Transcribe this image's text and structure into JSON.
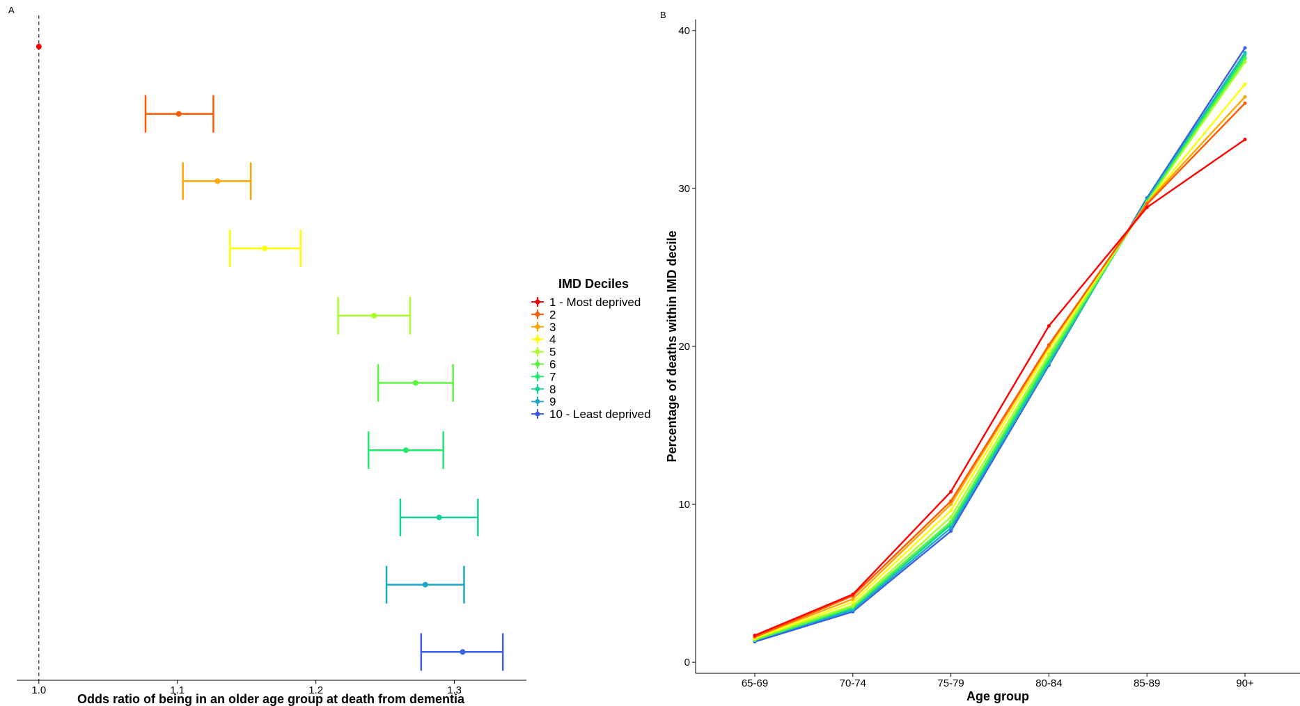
{
  "panels": {
    "a": {
      "label": "A"
    },
    "b": {
      "label": "B"
    }
  },
  "legend": {
    "title": "IMD Deciles",
    "items": [
      {
        "label": "1 - Most deprived",
        "color": "#ff0000"
      },
      {
        "label": "2",
        "color": "#ff5a00"
      },
      {
        "label": "3",
        "color": "#ffa500"
      },
      {
        "label": "4",
        "color": "#ffff00"
      },
      {
        "label": "5",
        "color": "#a8ff2a"
      },
      {
        "label": "6",
        "color": "#5cf542"
      },
      {
        "label": "7",
        "color": "#1eeb6e"
      },
      {
        "label": "8",
        "color": "#18d09a"
      },
      {
        "label": "9",
        "color": "#1ea7c8"
      },
      {
        "label": "10 - Least deprived",
        "color": "#3a5ee8"
      }
    ]
  },
  "chart_data": [
    {
      "type": "scatter",
      "panel": "A",
      "subtype": "forest",
      "xlabel": "Odds ratio of being in an older age group at death from dementia",
      "ylabel": "",
      "xlim": [
        0.984,
        1.352
      ],
      "x_ticks": [
        1.0,
        1.1,
        1.2,
        1.3
      ],
      "x_tick_labels": [
        "1.0",
        "1.1",
        "1.2",
        "1.3"
      ],
      "reference_line": 1.0,
      "grid": false,
      "series": [
        {
          "decile": "1 - Most deprived",
          "or": 1.0,
          "lower": null,
          "upper": null
        },
        {
          "decile": "2",
          "or": 1.101,
          "lower": 1.077,
          "upper": 1.126
        },
        {
          "decile": "3",
          "or": 1.129,
          "lower": 1.104,
          "upper": 1.153
        },
        {
          "decile": "4",
          "or": 1.163,
          "lower": 1.138,
          "upper": 1.189
        },
        {
          "decile": "5",
          "or": 1.242,
          "lower": 1.216,
          "upper": 1.268
        },
        {
          "decile": "6",
          "or": 1.272,
          "lower": 1.245,
          "upper": 1.299
        },
        {
          "decile": "7",
          "or": 1.265,
          "lower": 1.238,
          "upper": 1.292
        },
        {
          "decile": "8",
          "or": 1.289,
          "lower": 1.261,
          "upper": 1.317
        },
        {
          "decile": "9",
          "or": 1.279,
          "lower": 1.251,
          "upper": 1.307
        },
        {
          "decile": "10 - Least deprived",
          "or": 1.306,
          "lower": 1.276,
          "upper": 1.335
        }
      ]
    },
    {
      "type": "line",
      "panel": "B",
      "xlabel": "Age group",
      "ylabel": "Percentage of deaths within IMD decile",
      "categories": [
        "65-69",
        "70-74",
        "75-79",
        "80-84",
        "85-89",
        "90+"
      ],
      "ylim": [
        -0.7,
        40.7
      ],
      "y_ticks": [
        0,
        10,
        20,
        30,
        40
      ],
      "y_tick_labels": [
        "0",
        "10",
        "20",
        "30",
        "40"
      ],
      "grid": false,
      "series": [
        {
          "name": "1 - Most deprived",
          "values": [
            1.7,
            4.3,
            10.8,
            21.3,
            28.8,
            33.1
          ]
        },
        {
          "name": "2",
          "values": [
            1.6,
            4.2,
            10.2,
            20.1,
            29.0,
            35.4
          ]
        },
        {
          "name": "3",
          "values": [
            1.6,
            4.0,
            10.0,
            20.0,
            29.1,
            35.8
          ]
        },
        {
          "name": "4",
          "values": [
            1.5,
            3.8,
            9.6,
            19.8,
            29.1,
            36.6
          ]
        },
        {
          "name": "5",
          "values": [
            1.5,
            3.6,
            9.2,
            19.5,
            29.1,
            38.0
          ]
        },
        {
          "name": "6",
          "values": [
            1.4,
            3.5,
            8.9,
            19.3,
            29.1,
            38.2
          ]
        },
        {
          "name": "7",
          "values": [
            1.4,
            3.5,
            8.8,
            19.2,
            29.2,
            38.3
          ]
        },
        {
          "name": "8",
          "values": [
            1.4,
            3.4,
            8.7,
            19.0,
            29.2,
            38.5
          ]
        },
        {
          "name": "9",
          "values": [
            1.4,
            3.3,
            8.5,
            18.9,
            29.3,
            38.6
          ]
        },
        {
          "name": "10 - Least deprived",
          "values": [
            1.3,
            3.2,
            8.3,
            18.8,
            29.4,
            38.9
          ]
        }
      ]
    }
  ]
}
